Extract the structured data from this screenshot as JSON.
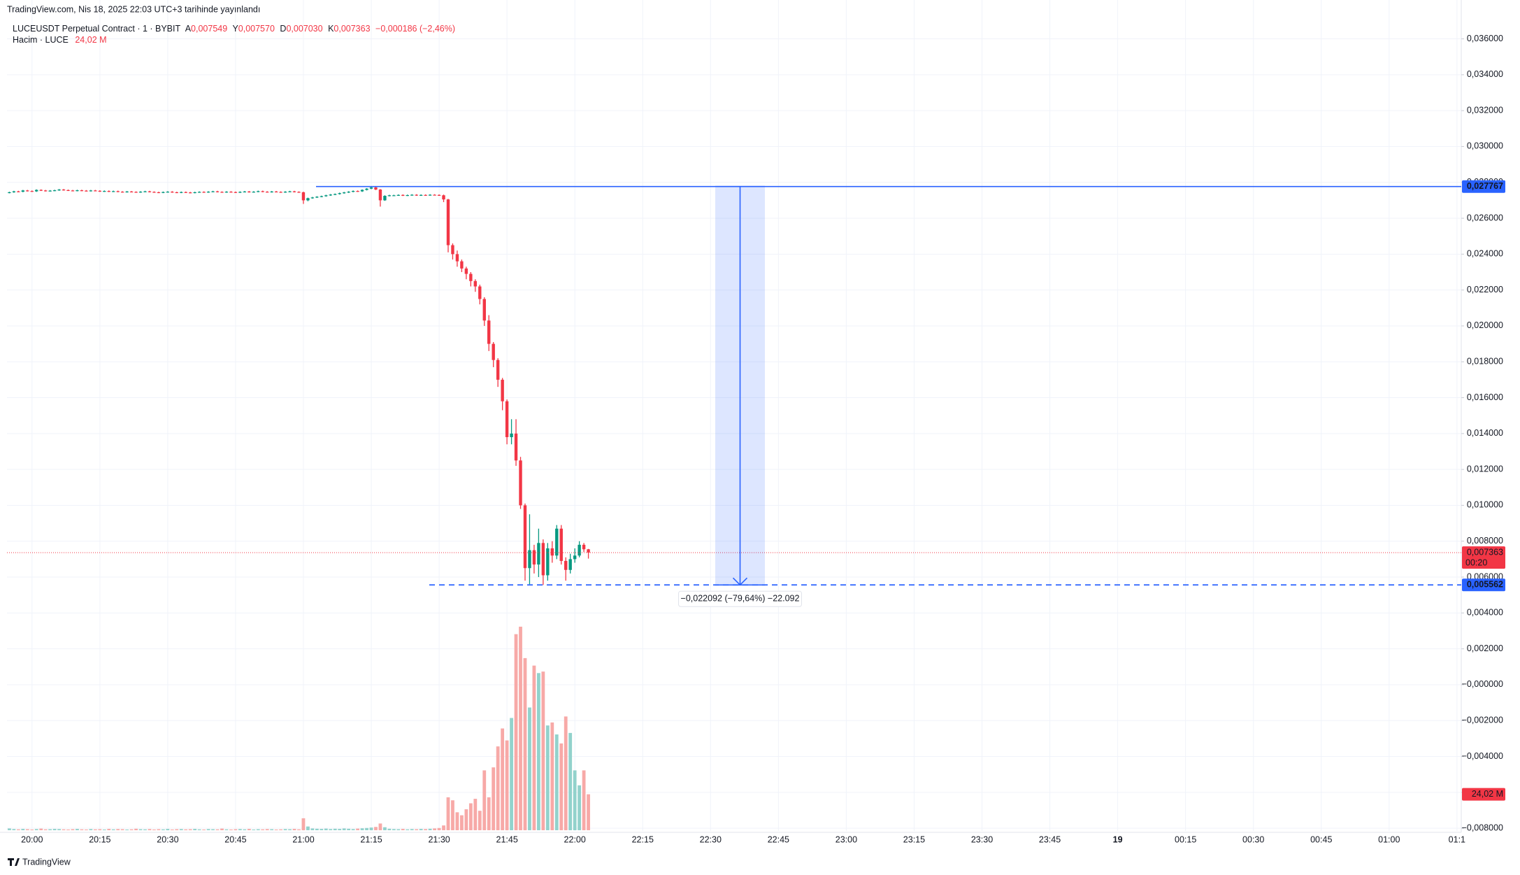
{
  "header": {
    "published": "TradingView.com, Nis 18, 2025 22:03 UTC+3 tarihinde yayınlandı",
    "footer": "TradingView"
  },
  "chart_data": {
    "type": "candlestick",
    "legend": {
      "symbol": "LUCEUSDT Perpetual Contract · 1 · BYBIT",
      "open_key": "A",
      "open": "0,007549",
      "high_key": "Y",
      "high": "0,007570",
      "low_key": "D",
      "low": "0,007030",
      "close_key": "K",
      "close": "0,007363",
      "change": "−0,000186 (−2,46%)",
      "volume_name": "Hacim · LUCE",
      "volume": "24,02 M"
    },
    "up_color": "#089981",
    "down_color": "#f23645",
    "x": [
      "19:55",
      "19:56",
      "19:57",
      "19:58",
      "19:59",
      "20:00",
      "20:01",
      "20:02",
      "20:03",
      "20:04",
      "20:05",
      "20:06",
      "20:07",
      "20:08",
      "20:09",
      "20:10",
      "20:11",
      "20:12",
      "20:13",
      "20:14",
      "20:15",
      "20:16",
      "20:17",
      "20:18",
      "20:19",
      "20:20",
      "20:21",
      "20:22",
      "20:23",
      "20:24",
      "20:25",
      "20:26",
      "20:27",
      "20:28",
      "20:29",
      "20:30",
      "20:31",
      "20:32",
      "20:33",
      "20:34",
      "20:35",
      "20:36",
      "20:37",
      "20:38",
      "20:39",
      "20:40",
      "20:41",
      "20:42",
      "20:43",
      "20:44",
      "20:45",
      "20:46",
      "20:47",
      "20:48",
      "20:49",
      "20:50",
      "20:51",
      "20:52",
      "20:53",
      "20:54",
      "20:55",
      "20:56",
      "20:57",
      "20:58",
      "20:59",
      "21:00",
      "21:01",
      "21:02",
      "21:03",
      "21:04",
      "21:05",
      "21:06",
      "21:07",
      "21:08",
      "21:09",
      "21:10",
      "21:11",
      "21:12",
      "21:13",
      "21:14",
      "21:15",
      "21:16",
      "21:17",
      "21:18",
      "21:19",
      "21:20",
      "21:21",
      "21:22",
      "21:23",
      "21:24",
      "21:25",
      "21:26",
      "21:27",
      "21:28",
      "21:29",
      "21:30",
      "21:31",
      "21:32",
      "21:33",
      "21:34",
      "21:35",
      "21:36",
      "21:37",
      "21:38",
      "21:39",
      "21:40",
      "21:41",
      "21:42",
      "21:43",
      "21:44",
      "21:45",
      "21:46",
      "21:47",
      "21:48",
      "21:49",
      "21:50",
      "21:51",
      "21:52",
      "21:53",
      "21:54",
      "21:55",
      "21:56",
      "21:57",
      "21:58",
      "21:59",
      "22:00",
      "22:01",
      "22:02",
      "22:03"
    ],
    "open": [
      0.02742,
      0.02745,
      0.0275,
      0.02748,
      0.02755,
      0.02752,
      0.0275,
      0.02758,
      0.02755,
      0.02752,
      0.02754,
      0.02756,
      0.0276,
      0.02757,
      0.02755,
      0.02753,
      0.02756,
      0.02754,
      0.02752,
      0.02755,
      0.02753,
      0.0275,
      0.02752,
      0.02749,
      0.02751,
      0.02748,
      0.02746,
      0.02749,
      0.02747,
      0.02745,
      0.02748,
      0.0275,
      0.02747,
      0.02745,
      0.02743,
      0.02746,
      0.02748,
      0.02745,
      0.02743,
      0.02746,
      0.02744,
      0.02742,
      0.02745,
      0.02747,
      0.02745,
      0.02748,
      0.0275,
      0.02747,
      0.02745,
      0.02748,
      0.02746,
      0.02744,
      0.02747,
      0.02749,
      0.02746,
      0.02748,
      0.02751,
      0.02748,
      0.02746,
      0.02749,
      0.02747,
      0.02745,
      0.02748,
      0.0275,
      0.02747,
      0.02745,
      0.027,
      0.02712,
      0.02716,
      0.0272,
      0.02723,
      0.02728,
      0.02732,
      0.02735,
      0.0274,
      0.02744,
      0.02748,
      0.02752,
      0.0275,
      0.02758,
      0.02765,
      0.02772,
      0.0276,
      0.027,
      0.02725,
      0.02728,
      0.02728,
      0.0273,
      0.02727,
      0.02729,
      0.02731,
      0.02728,
      0.0273,
      0.02729,
      0.02731,
      0.0273,
      0.02728,
      0.02705,
      0.0245,
      0.024,
      0.0236,
      0.0232,
      0.0229,
      0.0225,
      0.0222,
      0.0215,
      0.0203,
      0.019,
      0.0181,
      0.017,
      0.0158,
      0.0138,
      0.014,
      0.0125,
      0.01,
      0.0065,
      0.0075,
      0.0067,
      0.0079,
      0.0061,
      0.0076,
      0.0072,
      0.0087,
      0.0069,
      0.0064,
      0.007,
      0.0072,
      0.0078,
      0.007549
    ],
    "high": [
      0.02748,
      0.02753,
      0.02753,
      0.02758,
      0.02758,
      0.02755,
      0.02761,
      0.02761,
      0.02758,
      0.02757,
      0.02759,
      0.02763,
      0.02763,
      0.0276,
      0.02758,
      0.02759,
      0.02759,
      0.02757,
      0.02758,
      0.02758,
      0.02756,
      0.02755,
      0.02755,
      0.02754,
      0.02754,
      0.02751,
      0.02752,
      0.02752,
      0.0275,
      0.02751,
      0.02753,
      0.02753,
      0.0275,
      0.02748,
      0.02749,
      0.02751,
      0.02751,
      0.02748,
      0.02749,
      0.02749,
      0.02747,
      0.02748,
      0.0275,
      0.0275,
      0.02751,
      0.02753,
      0.02753,
      0.0275,
      0.02751,
      0.02751,
      0.02749,
      0.0275,
      0.02752,
      0.02752,
      0.02751,
      0.02754,
      0.02754,
      0.02751,
      0.02752,
      0.02752,
      0.0275,
      0.02751,
      0.02753,
      0.02753,
      0.0275,
      0.02748,
      0.02715,
      0.02719,
      0.02723,
      0.02726,
      0.02731,
      0.02735,
      0.02738,
      0.02743,
      0.02747,
      0.02751,
      0.02755,
      0.02755,
      0.02761,
      0.02768,
      0.02778,
      0.02776,
      0.02763,
      0.02728,
      0.02731,
      0.02731,
      0.02733,
      0.02733,
      0.02732,
      0.02734,
      0.02734,
      0.02733,
      0.02733,
      0.02734,
      0.02734,
      0.02733,
      0.02732,
      0.02708,
      0.0246,
      0.0242,
      0.0237,
      0.0233,
      0.023,
      0.0226,
      0.0223,
      0.0216,
      0.0206,
      0.0191,
      0.0182,
      0.0171,
      0.0159,
      0.0148,
      0.0148,
      0.0127,
      0.0101,
      0.0095,
      0.0078,
      0.0087,
      0.0081,
      0.0079,
      0.008,
      0.0089,
      0.0089,
      0.0071,
      0.0073,
      0.0076,
      0.008,
      0.0079,
      0.00757
    ],
    "low": [
      0.02739,
      0.02742,
      0.02745,
      0.02745,
      0.02749,
      0.02747,
      0.02747,
      0.02752,
      0.02749,
      0.02749,
      0.02751,
      0.02753,
      0.02754,
      0.02752,
      0.0275,
      0.0275,
      0.02751,
      0.02749,
      0.02749,
      0.0275,
      0.02747,
      0.02747,
      0.02746,
      0.02746,
      0.02745,
      0.02743,
      0.02743,
      0.02744,
      0.02742,
      0.02742,
      0.02745,
      0.02744,
      0.02742,
      0.0274,
      0.0274,
      0.02743,
      0.02742,
      0.0274,
      0.0274,
      0.02741,
      0.02739,
      0.02739,
      0.02742,
      0.02742,
      0.02742,
      0.02745,
      0.02744,
      0.02742,
      0.02742,
      0.02743,
      0.02741,
      0.02741,
      0.02744,
      0.02743,
      0.02743,
      0.02745,
      0.02745,
      0.02743,
      0.02743,
      0.02744,
      0.02742,
      0.02742,
      0.02745,
      0.02744,
      0.02742,
      0.0268,
      0.02695,
      0.02709,
      0.02713,
      0.02717,
      0.0272,
      0.02725,
      0.02729,
      0.02732,
      0.02737,
      0.02741,
      0.02745,
      0.02747,
      0.02747,
      0.02755,
      0.02762,
      0.02757,
      0.02665,
      0.02697,
      0.02722,
      0.02725,
      0.02725,
      0.02724,
      0.02724,
      0.02726,
      0.02725,
      0.02725,
      0.02726,
      0.02726,
      0.02727,
      0.02725,
      0.0269,
      0.0241,
      0.0237,
      0.0233,
      0.023,
      0.0226,
      0.0222,
      0.0219,
      0.0212,
      0.02,
      0.0186,
      0.0177,
      0.0166,
      0.0153,
      0.0134,
      0.0134,
      0.0122,
      0.0098,
      0.0058,
      0.0056,
      0.0062,
      0.006,
      0.00556,
      0.0058,
      0.0068,
      0.007,
      0.0067,
      0.0058,
      0.0062,
      0.0068,
      0.0071,
      0.0074,
      0.00703
    ],
    "close": [
      0.02745,
      0.0275,
      0.02748,
      0.02755,
      0.02752,
      0.0275,
      0.02758,
      0.02755,
      0.02752,
      0.02754,
      0.02756,
      0.0276,
      0.02757,
      0.02755,
      0.02753,
      0.02756,
      0.02754,
      0.02752,
      0.02755,
      0.02753,
      0.0275,
      0.02752,
      0.02749,
      0.02751,
      0.02748,
      0.02746,
      0.02749,
      0.02747,
      0.02745,
      0.02748,
      0.0275,
      0.02747,
      0.02745,
      0.02743,
      0.02746,
      0.02748,
      0.02745,
      0.02743,
      0.02746,
      0.02744,
      0.02742,
      0.02745,
      0.02747,
      0.02745,
      0.02748,
      0.0275,
      0.02747,
      0.02745,
      0.02748,
      0.02746,
      0.02744,
      0.02747,
      0.02749,
      0.02746,
      0.02748,
      0.02751,
      0.02748,
      0.02746,
      0.02749,
      0.02747,
      0.02745,
      0.02748,
      0.0275,
      0.02747,
      0.02745,
      0.027,
      0.02712,
      0.02716,
      0.0272,
      0.02723,
      0.02728,
      0.02732,
      0.02735,
      0.0274,
      0.02744,
      0.02748,
      0.02752,
      0.0275,
      0.02758,
      0.02765,
      0.02772,
      0.0276,
      0.027,
      0.02725,
      0.02728,
      0.02728,
      0.0273,
      0.02727,
      0.02729,
      0.02731,
      0.02728,
      0.0273,
      0.02729,
      0.02731,
      0.0273,
      0.02728,
      0.02705,
      0.0245,
      0.024,
      0.0236,
      0.0232,
      0.0229,
      0.0225,
      0.0222,
      0.0215,
      0.0203,
      0.019,
      0.0181,
      0.017,
      0.0158,
      0.0138,
      0.014,
      0.0125,
      0.01,
      0.0065,
      0.0075,
      0.0067,
      0.0079,
      0.0061,
      0.0076,
      0.0072,
      0.0087,
      0.0069,
      0.0064,
      0.007,
      0.0072,
      0.0078,
      0.00755,
      0.007363
    ],
    "volume": {
      "up_color": "#92d2cc",
      "down_color": "#f7a9a7",
      "last_label": "24,02 M",
      "values": [
        1.2,
        0.8,
        0.6,
        0.9,
        0.7,
        0.5,
        0.8,
        1.1,
        0.6,
        0.7,
        0.9,
        0.8,
        0.6,
        0.5,
        0.7,
        0.9,
        0.6,
        0.5,
        0.8,
        0.6,
        0.7,
        0.5,
        0.9,
        0.6,
        0.8,
        0.7,
        0.5,
        0.6,
        1.0,
        0.7,
        0.6,
        0.8,
        0.5,
        0.7,
        0.6,
        0.9,
        0.5,
        0.7,
        0.8,
        0.6,
        0.7,
        0.9,
        0.6,
        0.5,
        0.8,
        0.7,
        0.6,
        1.1,
        0.6,
        0.5,
        0.7,
        0.8,
        0.6,
        0.9,
        0.5,
        0.7,
        0.6,
        0.8,
        0.7,
        0.5,
        0.6,
        0.8,
        0.7,
        0.9,
        0.6,
        8.0,
        2.5,
        1.2,
        1.0,
        0.9,
        1.1,
        0.8,
        1.0,
        0.9,
        1.2,
        1.0,
        0.8,
        1.1,
        1.3,
        1.5,
        1.8,
        2.2,
        4.5,
        2.0,
        1.0,
        0.8,
        0.7,
        0.9,
        0.6,
        0.8,
        0.7,
        0.9,
        0.8,
        1.0,
        1.2,
        1.5,
        3.2,
        22,
        20,
        12,
        10,
        14,
        18,
        21,
        13,
        40,
        22,
        42,
        56,
        68,
        60,
        75,
        131,
        136,
        115,
        82,
        110,
        105,
        106,
        70,
        72,
        64,
        58,
        76,
        65,
        40,
        30,
        40,
        24.02
      ]
    },
    "ylim": [
      -0.00815,
      0.03762
    ],
    "yticks": [
      {
        "value": 0.036,
        "label": "0,036000"
      },
      {
        "value": 0.034,
        "label": "0,034000"
      },
      {
        "value": 0.032,
        "label": "0,032000"
      },
      {
        "value": 0.03,
        "label": "0,030000"
      },
      {
        "value": 0.028,
        "label": "0,028000"
      },
      {
        "value": 0.026,
        "label": "0,026000"
      },
      {
        "value": 0.024,
        "label": "0,024000"
      },
      {
        "value": 0.022,
        "label": "0,022000"
      },
      {
        "value": 0.02,
        "label": "0,020000"
      },
      {
        "value": 0.018,
        "label": "0,018000"
      },
      {
        "value": 0.016,
        "label": "0,016000"
      },
      {
        "value": 0.014,
        "label": "0,014000"
      },
      {
        "value": 0.012,
        "label": "0,012000"
      },
      {
        "value": 0.01,
        "label": "0,010000"
      },
      {
        "value": 0.008,
        "label": "0,008000"
      },
      {
        "value": 0.006,
        "label": "0,006000"
      },
      {
        "value": 0.004,
        "label": "0,004000"
      },
      {
        "value": 0.002,
        "label": "0,002000"
      },
      {
        "value": 0,
        "label": "−0,000000"
      },
      {
        "value": -0.002,
        "label": "−0,002000"
      },
      {
        "value": -0.004,
        "label": "−0,004000"
      },
      {
        "value": -0.006,
        "label": "−0,006000"
      },
      {
        "value": -0.008,
        "label": "−0,008000"
      }
    ],
    "xticks": [
      "20:00",
      "20:15",
      "20:30",
      "20:45",
      "21:00",
      "21:15",
      "21:30",
      "21:45",
      "22:00",
      "22:15",
      "22:30",
      "22:45",
      "23:00",
      "23:15",
      "23:30",
      "23:45",
      "19",
      "00:15",
      "00:30",
      "00:45",
      "01:00",
      "01:1"
    ],
    "grid": true,
    "price_line": {
      "value": 0.027767,
      "label": "0,027767",
      "color": "#2962ff"
    },
    "low_line": {
      "value": 0.005562,
      "label": "0,005562",
      "color": "#2962ff"
    },
    "last_price": {
      "value": 0.007363,
      "label": "0,007363",
      "countdown": "00:20",
      "color": "#f23645"
    },
    "measure_label": "−0,022092 (−79,64%) −22.092"
  }
}
